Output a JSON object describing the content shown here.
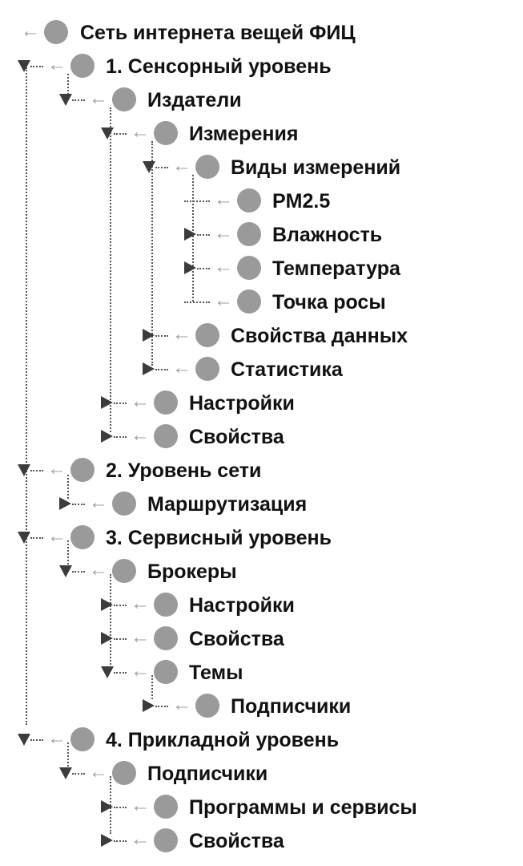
{
  "colors": {
    "node": "#9a9a9a",
    "arrow": "#9c9c9c",
    "toggle": "#3c3c3c",
    "text": "#111111"
  },
  "icons": {
    "expanded": "triangle-down-icon",
    "collapsed": "triangle-right-icon",
    "arrow": "left-arrow-icon",
    "node": "circle-node-icon"
  },
  "tree": [
    {
      "label": "Сеть интернета вещей ФИЦ",
      "state": "root"
    },
    {
      "label": "1. Сенсорный уровень",
      "state": "expanded"
    },
    {
      "label": "Издатели",
      "state": "expanded"
    },
    {
      "label": "Измерения",
      "state": "expanded"
    },
    {
      "label": "Виды измерений",
      "state": "expanded"
    },
    {
      "label": "PM2.5",
      "state": "leaf"
    },
    {
      "label": "Влажность",
      "state": "collapsed"
    },
    {
      "label": "Температура",
      "state": "collapsed"
    },
    {
      "label": "Точка росы",
      "state": "leaf"
    },
    {
      "label": "Свойства данных",
      "state": "collapsed"
    },
    {
      "label": "Статистика",
      "state": "collapsed"
    },
    {
      "label": "Настройки",
      "state": "collapsed"
    },
    {
      "label": "Свойства",
      "state": "collapsed"
    },
    {
      "label": "2. Уровень сети",
      "state": "expanded"
    },
    {
      "label": "Маршрутизация",
      "state": "collapsed"
    },
    {
      "label": "3. Сервисный уровень",
      "state": "expanded"
    },
    {
      "label": "Брокеры",
      "state": "expanded"
    },
    {
      "label": "Настройки",
      "state": "collapsed"
    },
    {
      "label": "Свойства",
      "state": "collapsed"
    },
    {
      "label": "Темы",
      "state": "expanded"
    },
    {
      "label": "Подписчики",
      "state": "collapsed"
    },
    {
      "label": "4. Прикладной уровень",
      "state": "expanded"
    },
    {
      "label": "Подписчики",
      "state": "expanded"
    },
    {
      "label": "Программы и сервисы",
      "state": "collapsed"
    },
    {
      "label": "Свойства",
      "state": "collapsed"
    }
  ]
}
